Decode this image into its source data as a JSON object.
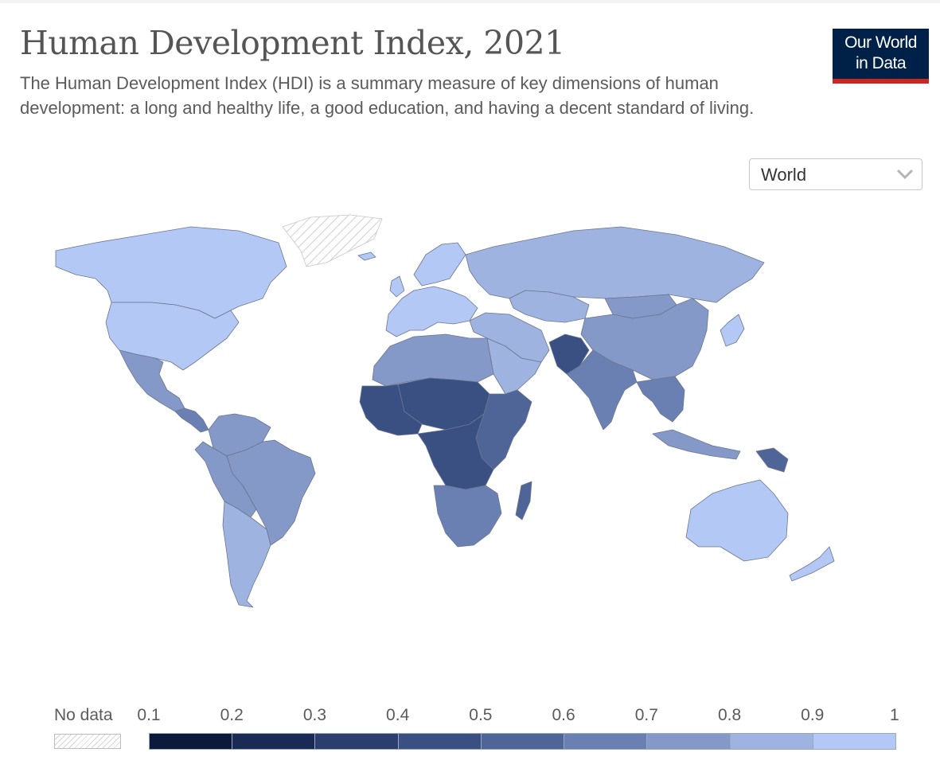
{
  "title": "Human Development Index, 2021",
  "subtitle": "The Human Development Index (HDI) is a summary measure of key dimensions of human development: a long and healthy life, a good education, and having a decent standard of living.",
  "logo": {
    "line1": "Our World",
    "line2": "in Data"
  },
  "region_select": {
    "value": "World",
    "icon": "chevron-down-icon"
  },
  "legend": {
    "no_data_label": "No data",
    "ticks": [
      "0.1",
      "0.2",
      "0.3",
      "0.4",
      "0.5",
      "0.6",
      "0.7",
      "0.8",
      "0.9",
      "1"
    ],
    "bins": [
      {
        "from": 0.1,
        "to": 0.2,
        "color": "#0b1a3a"
      },
      {
        "from": 0.2,
        "to": 0.3,
        "color": "#1a2a54"
      },
      {
        "from": 0.3,
        "to": 0.4,
        "color": "#2b3e6e"
      },
      {
        "from": 0.4,
        "to": 0.5,
        "color": "#3a5083"
      },
      {
        "from": 0.5,
        "to": 0.6,
        "color": "#4f6497"
      },
      {
        "from": 0.6,
        "to": 0.7,
        "color": "#6a80b2"
      },
      {
        "from": 0.7,
        "to": 0.8,
        "color": "#8499c8"
      },
      {
        "from": 0.8,
        "to": 0.9,
        "color": "#9fb3e0"
      },
      {
        "from": 0.9,
        "to": 1.0,
        "color": "#b3c8f5"
      }
    ]
  },
  "map": {
    "regions": [
      {
        "name": "Canada",
        "hdi": 0.936
      },
      {
        "name": "United States",
        "hdi": 0.921
      },
      {
        "name": "Mexico",
        "hdi": 0.758
      },
      {
        "name": "Central America",
        "hdi": 0.62
      },
      {
        "name": "Colombia & Venezuela",
        "hdi": 0.71
      },
      {
        "name": "Brazil",
        "hdi": 0.754
      },
      {
        "name": "Peru & Bolivia",
        "hdi": 0.72
      },
      {
        "name": "Argentina & Chile",
        "hdi": 0.85
      },
      {
        "name": "Greenland",
        "hdi": null
      },
      {
        "name": "Western Europe",
        "hdi": 0.92
      },
      {
        "name": "Scandinavia",
        "hdi": 0.95
      },
      {
        "name": "Russia",
        "hdi": 0.822
      },
      {
        "name": "Kazakhstan",
        "hdi": 0.811
      },
      {
        "name": "China",
        "hdi": 0.768
      },
      {
        "name": "Mongolia",
        "hdi": 0.739
      },
      {
        "name": "India",
        "hdi": 0.633
      },
      {
        "name": "Pakistan & Afghanistan",
        "hdi": 0.45
      },
      {
        "name": "Iran & Turkey",
        "hdi": 0.8
      },
      {
        "name": "Arabian Peninsula",
        "hdi": 0.86
      },
      {
        "name": "North Africa",
        "hdi": 0.72
      },
      {
        "name": "Sahel",
        "hdi": 0.4
      },
      {
        "name": "West Africa",
        "hdi": 0.45
      },
      {
        "name": "Central Africa",
        "hdi": 0.48
      },
      {
        "name": "East Africa",
        "hdi": 0.5
      },
      {
        "name": "Southern Africa",
        "hdi": 0.62
      },
      {
        "name": "Madagascar",
        "hdi": 0.501
      },
      {
        "name": "Southeast Asia",
        "hdi": 0.68
      },
      {
        "name": "Indonesia",
        "hdi": 0.705
      },
      {
        "name": "Papua New Guinea",
        "hdi": 0.558
      },
      {
        "name": "Japan & Korea",
        "hdi": 0.925
      },
      {
        "name": "Australia",
        "hdi": 0.951
      },
      {
        "name": "New Zealand",
        "hdi": 0.937
      }
    ]
  }
}
